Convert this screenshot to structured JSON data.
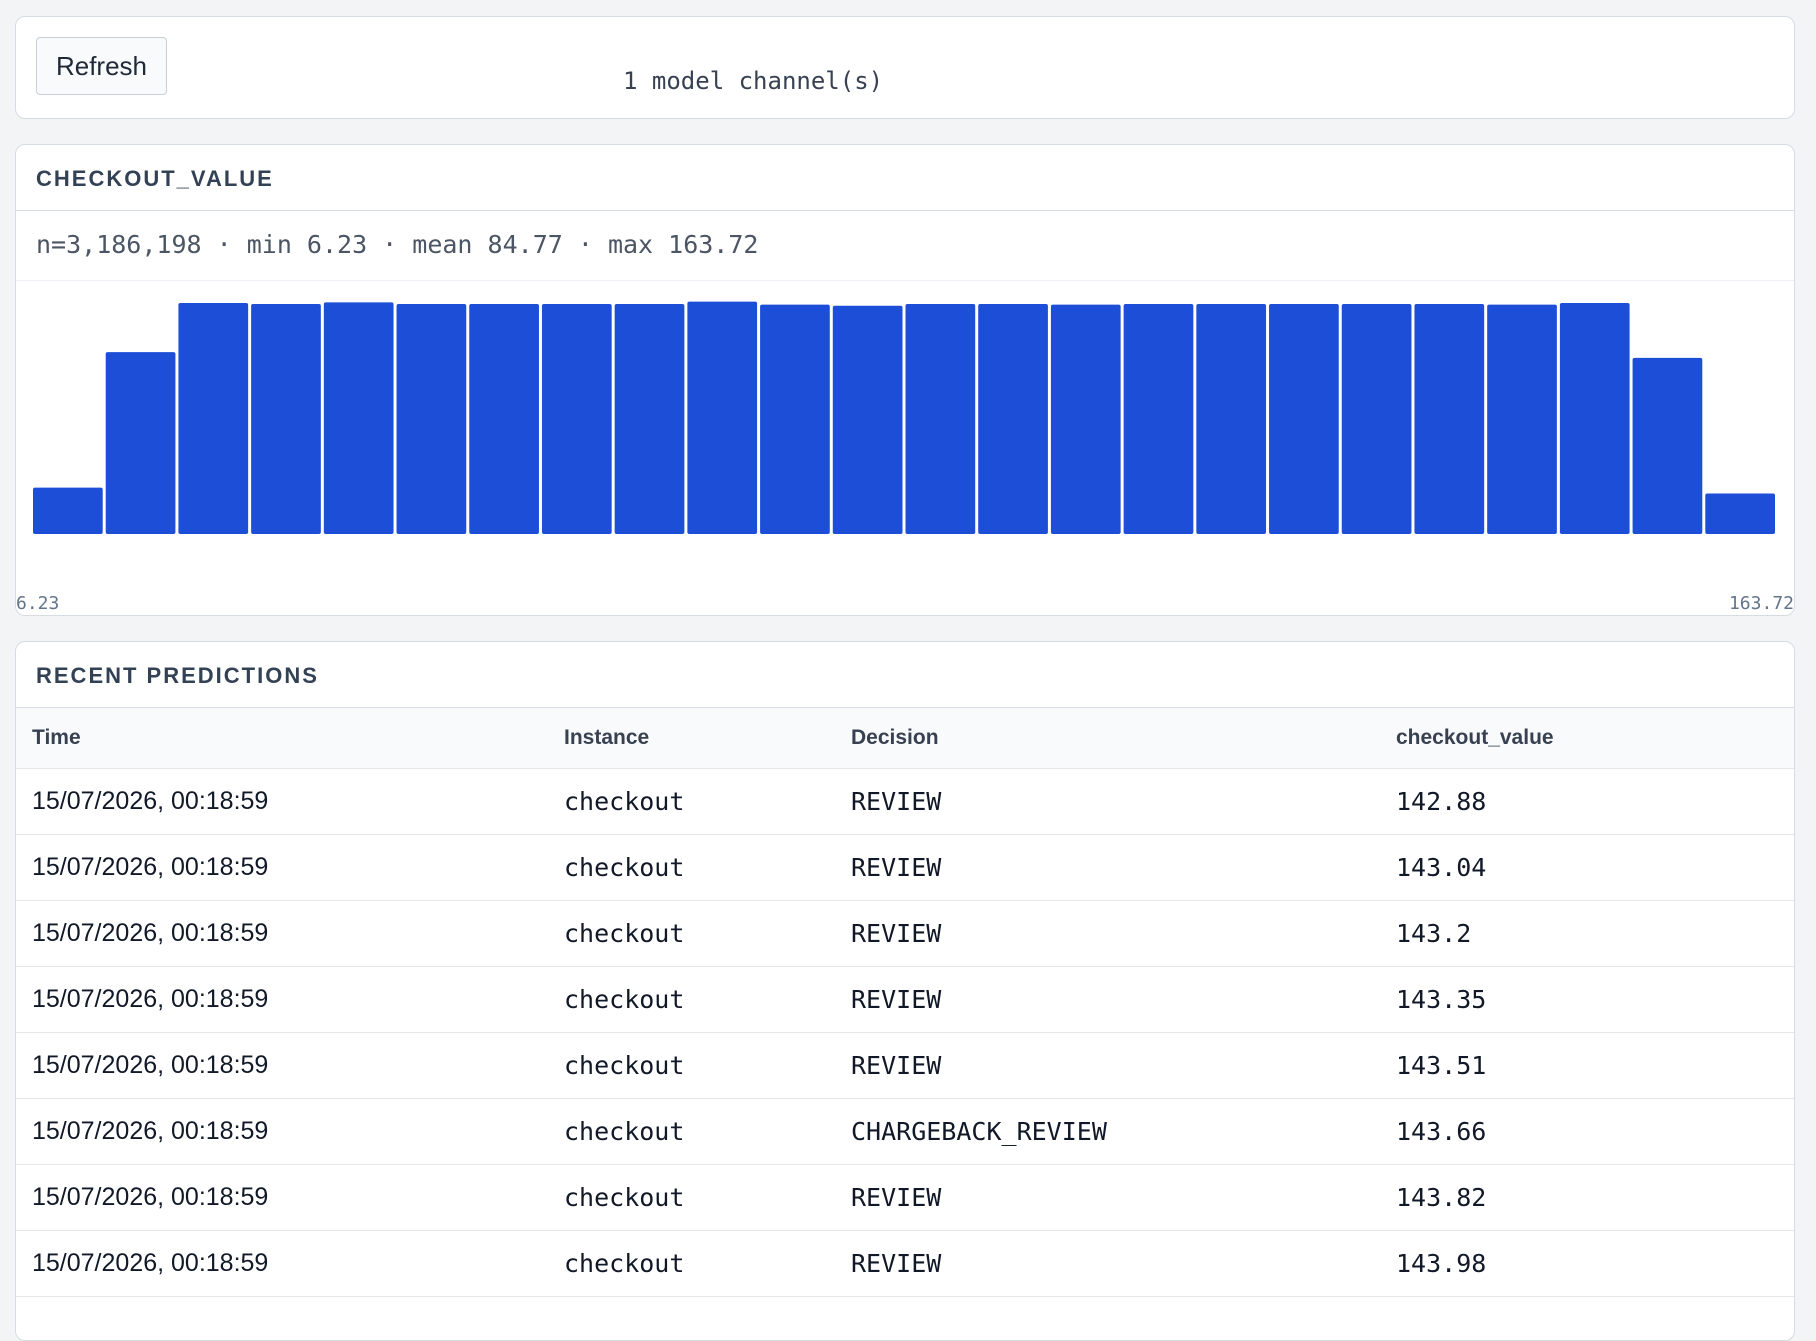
{
  "toolbar": {
    "refresh_label": "Refresh",
    "channel_count": "1 model channel(s)"
  },
  "histogram_panel": {
    "title": "CHECKOUT_VALUE",
    "stats": "n=3,186,198 · min 6.23 · mean 84.77 · max 163.72",
    "bar_color": "#1d4ed8",
    "chart_data": {
      "type": "bar",
      "title": "",
      "xlabel": "",
      "ylabel": "",
      "x_range": [
        6.23,
        163.72
      ],
      "tick_labels": [
        "6.23",
        "163.72"
      ],
      "values": [
        0.2,
        0.785,
        0.997,
        0.993,
        1.0,
        0.993,
        0.993,
        0.993,
        0.993,
        1.003,
        0.99,
        0.985,
        0.993,
        0.993,
        0.99,
        0.993,
        0.993,
        0.993,
        0.993,
        0.993,
        0.99,
        0.997,
        0.76,
        0.175
      ],
      "ylim": [
        0,
        1.01
      ],
      "grid": false,
      "legend": "none"
    }
  },
  "predictions_panel": {
    "title": "RECENT PREDICTIONS",
    "columns": [
      "Time",
      "Instance",
      "Decision",
      "checkout_value"
    ],
    "rows": [
      {
        "time": "15/07/2026, 00:18:59",
        "instance": "checkout",
        "decision": "REVIEW",
        "value": "142.88"
      },
      {
        "time": "15/07/2026, 00:18:59",
        "instance": "checkout",
        "decision": "REVIEW",
        "value": "143.04"
      },
      {
        "time": "15/07/2026, 00:18:59",
        "instance": "checkout",
        "decision": "REVIEW",
        "value": "143.2"
      },
      {
        "time": "15/07/2026, 00:18:59",
        "instance": "checkout",
        "decision": "REVIEW",
        "value": "143.35"
      },
      {
        "time": "15/07/2026, 00:18:59",
        "instance": "checkout",
        "decision": "REVIEW",
        "value": "143.51"
      },
      {
        "time": "15/07/2026, 00:18:59",
        "instance": "checkout",
        "decision": "CHARGEBACK_REVIEW",
        "value": "143.66"
      },
      {
        "time": "15/07/2026, 00:18:59",
        "instance": "checkout",
        "decision": "REVIEW",
        "value": "143.82"
      },
      {
        "time": "15/07/2026, 00:18:59",
        "instance": "checkout",
        "decision": "REVIEW",
        "value": "143.98"
      }
    ]
  }
}
